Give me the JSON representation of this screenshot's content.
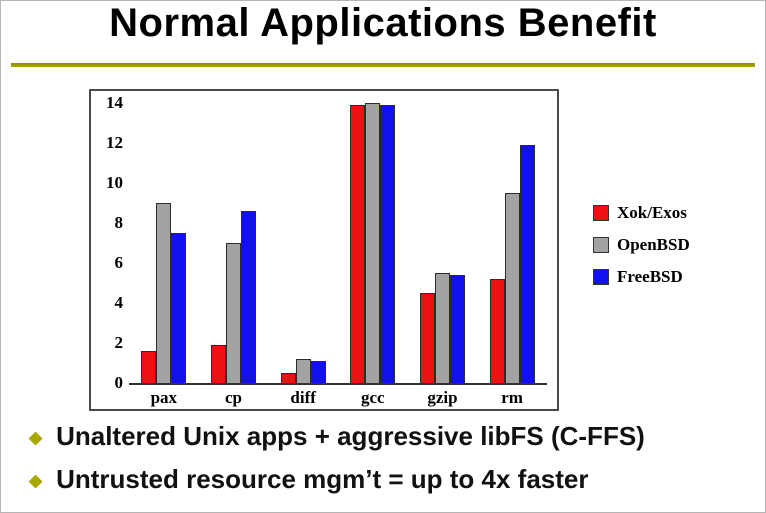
{
  "slide": {
    "title": "Normal Applications Benefit",
    "accent_color": "#a8a800",
    "bullets": [
      "Unaltered Unix apps + aggressive libFS (C-FFS)",
      "Untrusted resource mgm’t = up to 4x faster"
    ]
  },
  "chart_data": {
    "type": "bar",
    "title": "",
    "xlabel": "",
    "ylabel": "",
    "categories": [
      "pax",
      "cp",
      "diff",
      "gcc",
      "gzip",
      "rm"
    ],
    "series": [
      {
        "name": "Xok/Exos",
        "color": "#ee1111",
        "values": [
          1.6,
          1.9,
          0.5,
          13.9,
          4.5,
          5.2
        ]
      },
      {
        "name": "OpenBSD",
        "color": "#a3a3a3",
        "values": [
          9.0,
          7.0,
          1.2,
          14.0,
          5.5,
          9.5
        ]
      },
      {
        "name": "FreeBSD",
        "color": "#1111ee",
        "values": [
          7.5,
          8.6,
          1.1,
          13.9,
          5.4,
          11.9
        ]
      }
    ],
    "ylim": [
      0,
      14
    ],
    "yticks": [
      0,
      2,
      4,
      6,
      8,
      10,
      12,
      14
    ],
    "grid": false,
    "legend_position": "right"
  }
}
